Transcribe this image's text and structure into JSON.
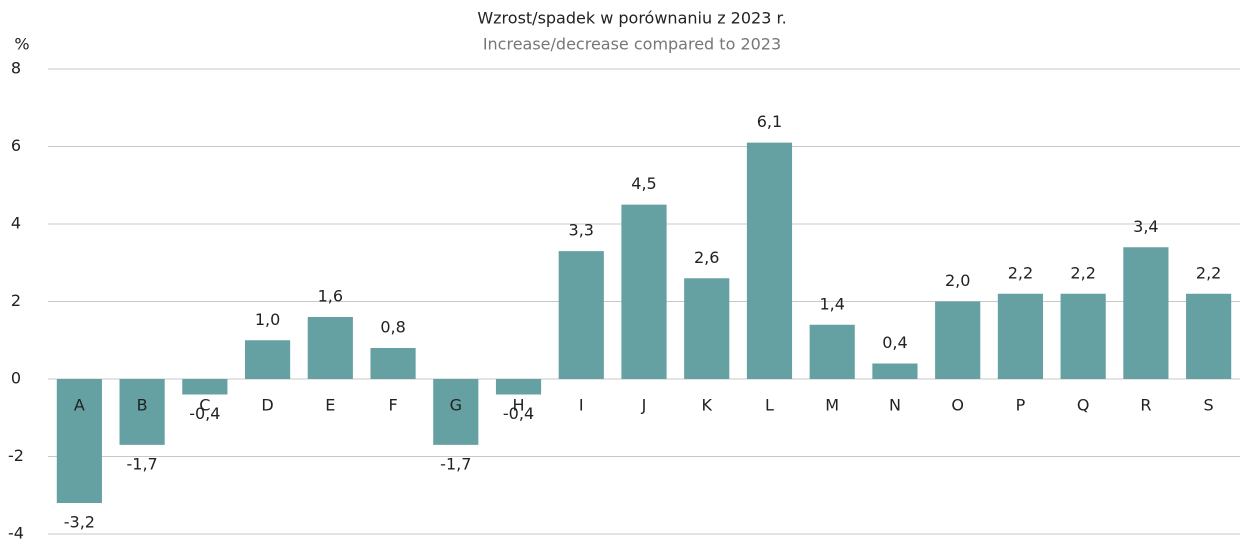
{
  "chart_data": {
    "type": "bar",
    "title": "Wzrost/spadek w porównaniu z 2023 r.",
    "subtitle": "Increase/decrease compared to 2023",
    "y_label": "%",
    "categories": [
      "A",
      "B",
      "C",
      "D",
      "E",
      "F",
      "G",
      "H",
      "I",
      "J",
      "K",
      "L",
      "M",
      "N",
      "O",
      "P",
      "Q",
      "R",
      "S"
    ],
    "values": [
      -3.2,
      -1.7,
      -0.4,
      1.0,
      1.6,
      0.8,
      -1.7,
      -0.4,
      3.3,
      4.5,
      2.6,
      6.1,
      1.4,
      0.4,
      2.0,
      2.2,
      2.2,
      3.4,
      2.2
    ],
    "value_labels": [
      "-3,2",
      "-1,7",
      "-0,4",
      "1,0",
      "1,6",
      "0,8",
      "-1,7",
      "-0,4",
      "3,3",
      "4,5",
      "2,6",
      "6,1",
      "1,4",
      "0,4",
      "2,0",
      "2,2",
      "2,2",
      "3,4",
      "2,2"
    ],
    "color": "#65a0a3",
    "ylim": [
      -4,
      8
    ],
    "yticks": [
      -4,
      -2,
      0,
      2,
      4,
      6,
      8
    ],
    "grid": true
  }
}
